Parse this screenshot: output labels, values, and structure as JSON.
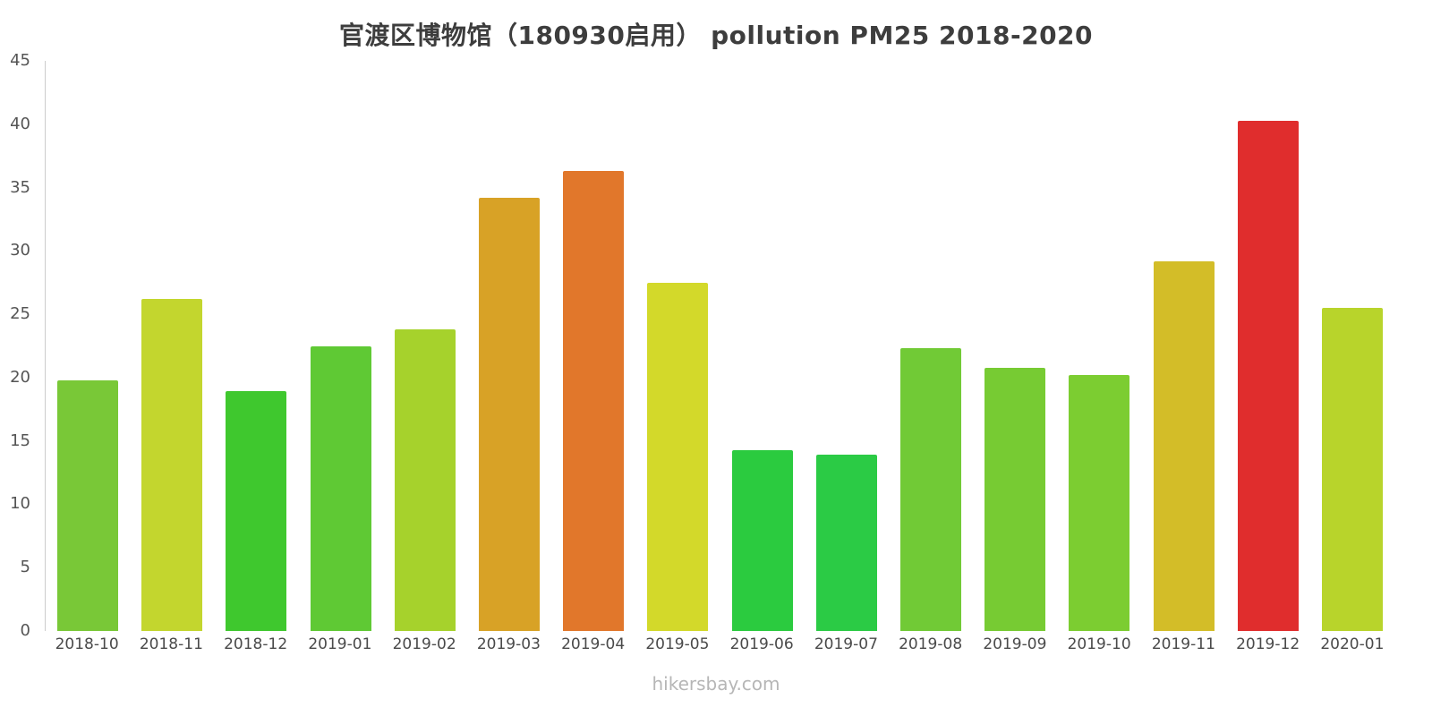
{
  "page": {
    "footer": "hikersbay.com"
  },
  "chart_data": {
    "type": "bar",
    "title": "官渡区博物馆（180930启用） pollution PM25 2018-2020",
    "categories": [
      "2018-10",
      "2018-11",
      "2018-12",
      "2019-01",
      "2019-02",
      "2019-03",
      "2019-04",
      "2019-05",
      "2019-06",
      "2019-07",
      "2019-08",
      "2019-09",
      "2019-10",
      "2019-11",
      "2019-12",
      "2020-01"
    ],
    "values": [
      19.8,
      26.2,
      18.9,
      22.5,
      23.8,
      34.2,
      36.3,
      27.5,
      14.3,
      13.9,
      22.3,
      20.8,
      20.2,
      29.2,
      40.3,
      25.5
    ],
    "bar_colors": [
      "#79c837",
      "#c3d62e",
      "#3fc82e",
      "#5fc934",
      "#a6d22c",
      "#d8a226",
      "#e1772b",
      "#d3d92a",
      "#2bcb3f",
      "#2bcb45",
      "#71ca36",
      "#77cb33",
      "#7ccd31",
      "#d3bd28",
      "#e02d2d",
      "#b8d42b"
    ],
    "xlabel": "",
    "ylabel": "",
    "ylim": [
      0,
      45
    ],
    "yticks": [
      0,
      5,
      10,
      15,
      20,
      25,
      30,
      35,
      40,
      45
    ],
    "grid": false,
    "legend": "none"
  }
}
